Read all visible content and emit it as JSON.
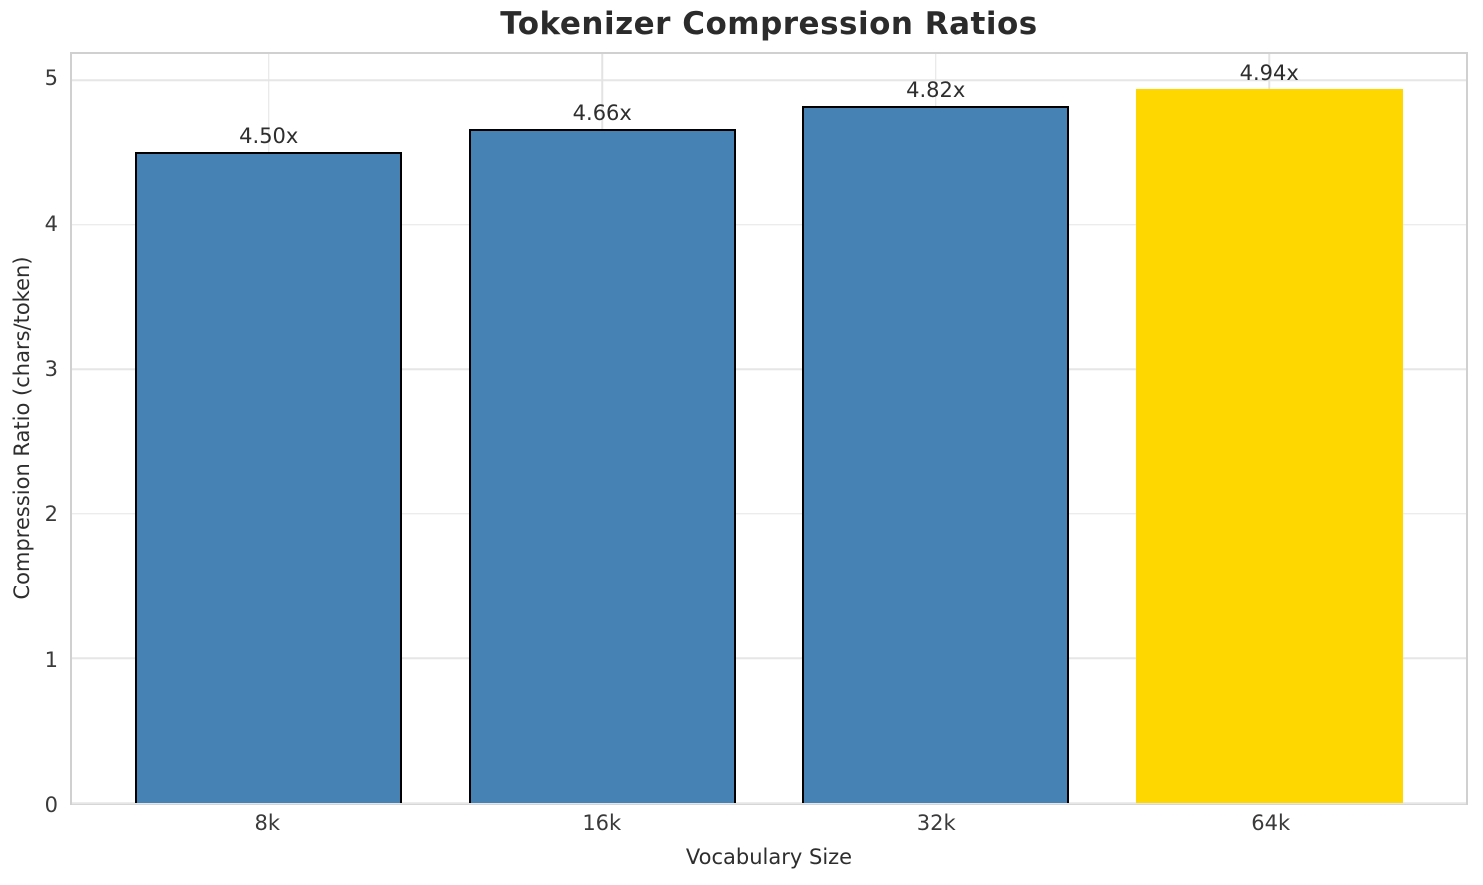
{
  "chart_data": {
    "type": "bar",
    "title": "Tokenizer Compression Ratios",
    "xlabel": "Vocabulary Size",
    "ylabel": "Compression Ratio (chars/token)",
    "categories": [
      "8k",
      "16k",
      "32k",
      "64k"
    ],
    "values": [
      4.5,
      4.66,
      4.82,
      4.94
    ],
    "bar_labels": [
      "4.50x",
      "4.66x",
      "4.82x",
      "4.94x"
    ],
    "yticks": [
      0,
      1,
      2,
      3,
      4,
      5
    ],
    "ylim": [
      0,
      5.18
    ],
    "grid": "both",
    "legend_position": "none",
    "colors": {
      "bar_fill": "#4682B4",
      "bar_edge": "#000000",
      "highlight_fill": "#FFD700",
      "grid": "#e6e6e6",
      "spine": "#d0d0d0",
      "text": "#2e2e2e"
    },
    "highlight_index": 3
  }
}
